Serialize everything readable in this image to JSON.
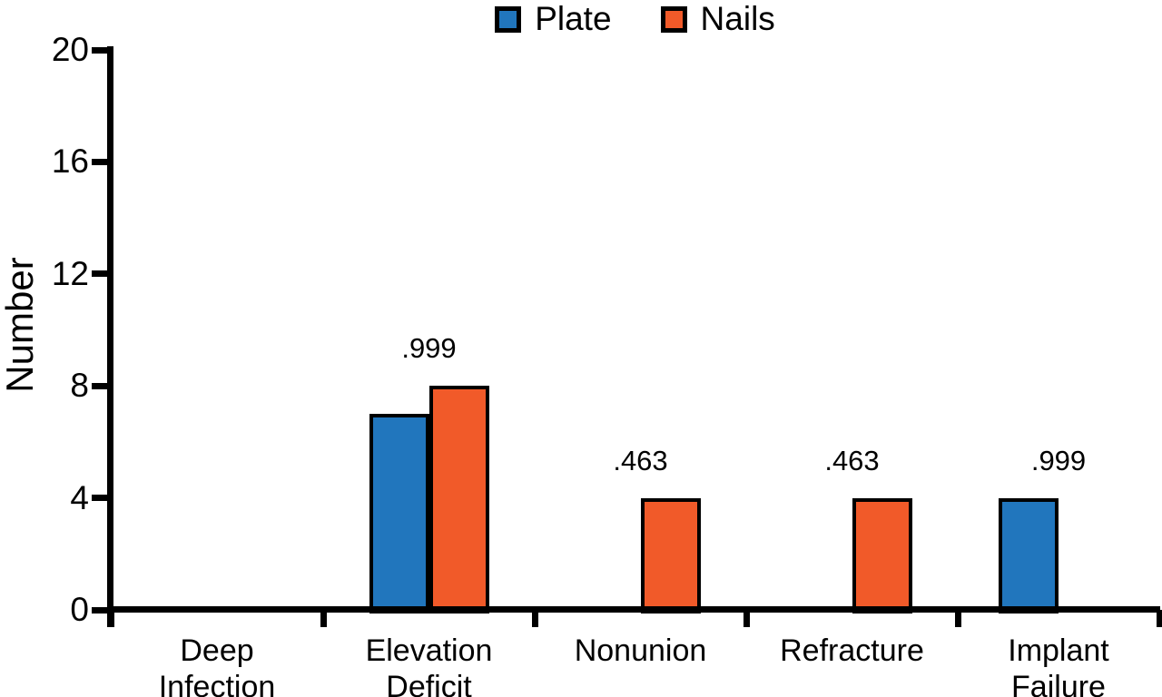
{
  "colors": {
    "plate": "#2176BD",
    "nails": "#F15A29",
    "axis": "#000000",
    "background": "#FFFFFF"
  },
  "legend": {
    "position": "top",
    "items": [
      {
        "label": "Plate",
        "color": "#2176BD"
      },
      {
        "label": "Nails",
        "color": "#F15A29"
      }
    ]
  },
  "chart_data": {
    "type": "bar",
    "title": "",
    "xlabel": "",
    "ylabel": "Number",
    "ylim": [
      0,
      20
    ],
    "y_ticks": [
      0,
      4,
      8,
      12,
      16,
      20
    ],
    "grid": false,
    "legend_position": "top",
    "categories": [
      "Deep Infection",
      "Elevation Deficit",
      "Nonunion",
      "Refracture",
      "Implant Failure"
    ],
    "category_label_lines": [
      [
        "Deep",
        "Infection"
      ],
      [
        "Elevation",
        "Deficit"
      ],
      [
        "Nonunion"
      ],
      [
        "Refracture"
      ],
      [
        "Implant",
        "Failure"
      ]
    ],
    "series": [
      {
        "name": "Plate",
        "color": "#2176BD",
        "values": [
          0,
          7,
          0,
          0,
          4
        ]
      },
      {
        "name": "Nails",
        "color": "#F15A29",
        "values": [
          0,
          8,
          4,
          4,
          0
        ]
      }
    ],
    "bar_labels": [
      "",
      ".999",
      ".463",
      ".463",
      ".999"
    ]
  }
}
